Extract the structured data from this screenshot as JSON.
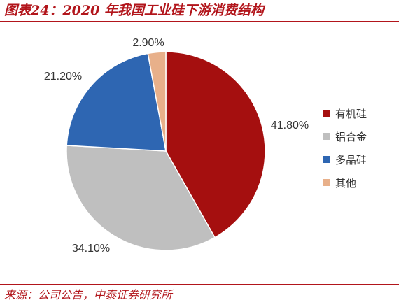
{
  "header": {
    "title": "图表24：2020 年我国工业硅下游消费结构"
  },
  "footer": {
    "source": "来源：公司公告，中泰证券研究所"
  },
  "chart_data": {
    "type": "pie",
    "title": "",
    "legend_position": "right",
    "slices": [
      {
        "name": "有机硅",
        "value": 41.8,
        "label": "41.80%",
        "color": "#a50f0f"
      },
      {
        "name": "铝合金",
        "value": 34.1,
        "label": "34.10%",
        "color": "#bfbfbf"
      },
      {
        "name": "多晶硅",
        "value": 21.2,
        "label": "21.20%",
        "color": "#2e66b2"
      },
      {
        "name": "其他",
        "value": 2.9,
        "label": "2.90%",
        "color": "#e8b08a"
      }
    ]
  }
}
